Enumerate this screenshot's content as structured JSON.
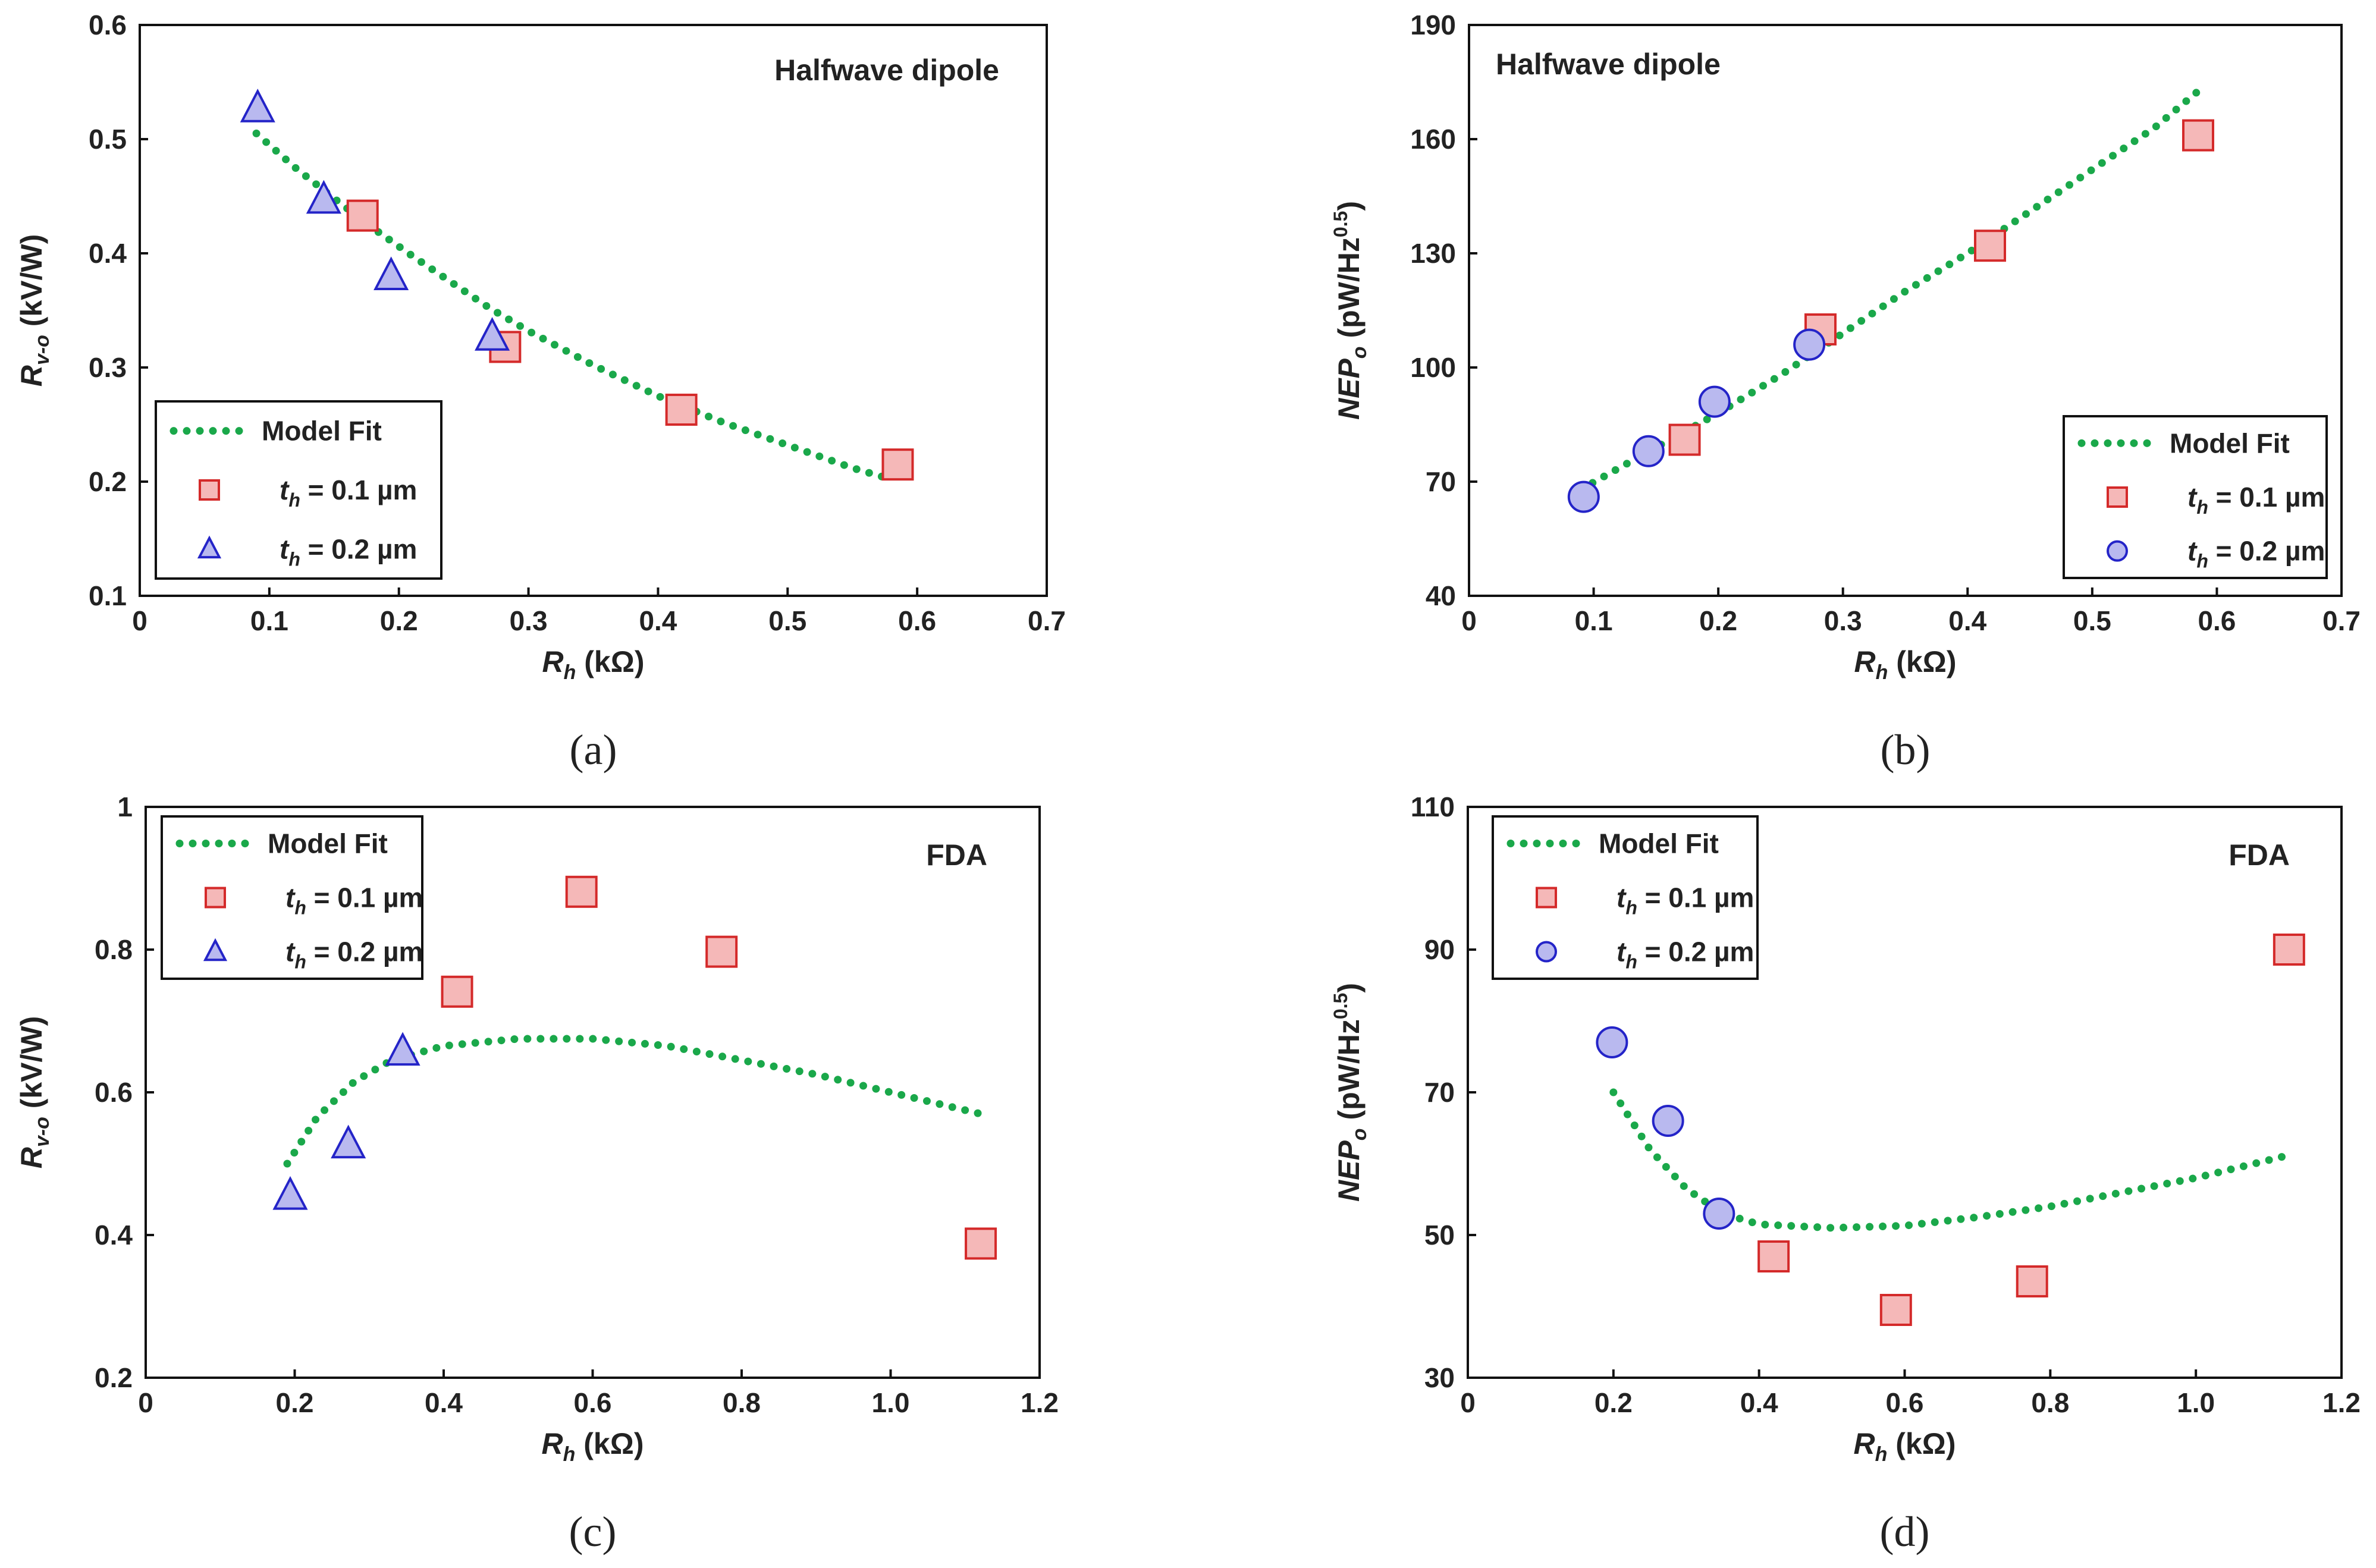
{
  "chart_data": [
    {
      "type": "scatter",
      "panel": "(a)",
      "title": "Halfwave dipole",
      "xlabel": {
        "main": "R",
        "sub": "h",
        "unit": " (kΩ)"
      },
      "ylabel": {
        "main": "R",
        "sub": "v-o",
        "unit": " (kV/W)"
      },
      "xlim": [
        0,
        0.7
      ],
      "ylim": [
        0.1,
        0.6
      ],
      "xticks": [
        0,
        0.1,
        0.2,
        0.3,
        0.4,
        0.5,
        0.6,
        0.7
      ],
      "yticks": [
        0.1,
        0.2,
        0.3,
        0.4,
        0.5,
        0.6
      ],
      "xtick_labels": [
        "0",
        "0.1",
        "0.2",
        "0.3",
        "0.4",
        "0.5",
        "0.6",
        "0.7"
      ],
      "ytick_labels": [
        "0.1",
        "0.2",
        "0.3",
        "0.4",
        "0.5",
        "0.6"
      ],
      "legend_position": "bottom-left",
      "series": [
        {
          "name": "Model Fit",
          "kind": "fit",
          "color": "#1aa84a",
          "x": [
            0.09,
            0.12,
            0.15,
            0.18,
            0.21,
            0.24,
            0.27,
            0.3,
            0.35,
            0.4,
            0.45,
            0.5,
            0.55,
            0.58
          ],
          "y": [
            0.505,
            0.475,
            0.448,
            0.422,
            0.398,
            0.375,
            0.352,
            0.332,
            0.302,
            0.275,
            0.252,
            0.232,
            0.212,
            0.202
          ]
        },
        {
          "name": "0.1 µm",
          "label_prefix": "t",
          "label_sub": "h",
          "label_eq": " = ",
          "kind": "square",
          "fill": "#f5b8b8",
          "stroke": "#d42a2a",
          "x": [
            0.172,
            0.282,
            0.418,
            0.585
          ],
          "y": [
            0.433,
            0.318,
            0.263,
            0.215
          ]
        },
        {
          "name": "0.2 µm",
          "label_prefix": "t",
          "label_sub": "h",
          "label_eq": " = ",
          "kind": "triangle",
          "fill": "#b9b9ef",
          "stroke": "#2424c8",
          "x": [
            0.091,
            0.142,
            0.194,
            0.272
          ],
          "y": [
            0.527,
            0.447,
            0.38,
            0.327
          ]
        }
      ]
    },
    {
      "type": "scatter",
      "panel": "(b)",
      "title": "Halfwave dipole",
      "xlabel": {
        "main": "R",
        "sub": "h",
        "unit": " (kΩ)"
      },
      "ylabel": {
        "main": "NEP",
        "sub": "o",
        "unit": " (pW/Hz",
        "sup": "0.5",
        "close": ")"
      },
      "xlim": [
        0,
        0.7
      ],
      "ylim": [
        40,
        190
      ],
      "xticks": [
        0,
        0.1,
        0.2,
        0.3,
        0.4,
        0.5,
        0.6,
        0.7
      ],
      "yticks": [
        40,
        70,
        100,
        130,
        160,
        190
      ],
      "xtick_labels": [
        "0",
        "0.1",
        "0.2",
        "0.3",
        "0.4",
        "0.5",
        "0.6",
        "0.7"
      ],
      "ytick_labels": [
        "40",
        "70",
        "100",
        "130",
        "160",
        "190"
      ],
      "legend_position": "bottom-right",
      "series": [
        {
          "name": "Model Fit",
          "kind": "fit",
          "color": "#1aa84a",
          "x": [
            0.09,
            0.15,
            0.2,
            0.25,
            0.3,
            0.35,
            0.4,
            0.45,
            0.5,
            0.55,
            0.59
          ],
          "y": [
            68,
            79,
            88,
            98,
            109,
            120,
            130,
            141,
            152,
            163,
            174
          ]
        },
        {
          "name": "0.1 µm",
          "label_prefix": "t",
          "label_sub": "h",
          "label_eq": " = ",
          "kind": "square",
          "fill": "#f5b8b8",
          "stroke": "#d42a2a",
          "x": [
            0.173,
            0.282,
            0.418,
            0.585
          ],
          "y": [
            81,
            110,
            132,
            161
          ]
        },
        {
          "name": "0.2 µm",
          "label_prefix": "t",
          "label_sub": "h",
          "label_eq": " = ",
          "kind": "circle",
          "fill": "#b9b9ef",
          "stroke": "#2424c8",
          "x": [
            0.092,
            0.144,
            0.197,
            0.273
          ],
          "y": [
            66,
            78,
            91,
            106
          ]
        }
      ]
    },
    {
      "type": "scatter",
      "panel": "(c)",
      "title": "FDA",
      "xlabel": {
        "main": "R",
        "sub": "h",
        "unit": " (kΩ)"
      },
      "ylabel": {
        "main": "R",
        "sub": "v-o",
        "unit": " (kV/W)"
      },
      "xlim": [
        0,
        1.2
      ],
      "ylim": [
        0.2,
        1
      ],
      "xticks": [
        0,
        0.2,
        0.4,
        0.6,
        0.8,
        1.0,
        1.2
      ],
      "yticks": [
        0.2,
        0.4,
        0.6,
        0.8,
        1.0
      ],
      "xtick_labels": [
        "0",
        "0.2",
        "0.4",
        "0.6",
        "0.8",
        "1.0",
        "1.2"
      ],
      "ytick_labels": [
        "0.2",
        "0.4",
        "0.6",
        "0.8",
        "1"
      ],
      "legend_position": "top-left",
      "series": [
        {
          "name": "Model Fit",
          "kind": "fit",
          "color": "#1aa84a",
          "x": [
            0.19,
            0.23,
            0.28,
            0.33,
            0.4,
            0.5,
            0.6,
            0.7,
            0.8,
            0.9,
            1.0,
            1.12
          ],
          "y": [
            0.5,
            0.565,
            0.615,
            0.645,
            0.665,
            0.675,
            0.675,
            0.665,
            0.645,
            0.625,
            0.6,
            0.57
          ]
        },
        {
          "name": "0.1 µm",
          "label_prefix": "t",
          "label_sub": "h",
          "label_eq": " = ",
          "kind": "square",
          "fill": "#f5b8b8",
          "stroke": "#d42a2a",
          "x": [
            0.418,
            0.585,
            0.773,
            1.121
          ],
          "y": [
            0.741,
            0.881,
            0.797,
            0.388
          ]
        },
        {
          "name": "0.2 µm",
          "label_prefix": "t",
          "label_sub": "h",
          "label_eq": " = ",
          "kind": "triangle",
          "fill": "#b9b9ef",
          "stroke": "#2424c8",
          "x": [
            0.194,
            0.272,
            0.345
          ],
          "y": [
            0.455,
            0.527,
            0.657
          ]
        }
      ]
    },
    {
      "type": "scatter",
      "panel": "(d)",
      "title": "FDA",
      "xlabel": {
        "main": "R",
        "sub": "h",
        "unit": " (kΩ)"
      },
      "ylabel": {
        "main": "NEP",
        "sub": "o",
        "unit": " (pW/Hz",
        "sup": "0.5",
        "close": ")"
      },
      "xlim": [
        0,
        1.2
      ],
      "ylim": [
        30,
        110
      ],
      "xticks": [
        0,
        0.2,
        0.4,
        0.6,
        0.8,
        1.0,
        1.2
      ],
      "yticks": [
        30,
        50,
        70,
        90,
        110
      ],
      "xtick_labels": [
        "0",
        "0.2",
        "0.4",
        "0.6",
        "0.8",
        "1.0",
        "1.2"
      ],
      "ytick_labels": [
        "30",
        "50",
        "70",
        "90",
        "110"
      ],
      "legend_position": "top-left",
      "series": [
        {
          "name": "Model Fit",
          "kind": "fit",
          "color": "#1aa84a",
          "x": [
            0.2,
            0.25,
            0.3,
            0.35,
            0.4,
            0.5,
            0.6,
            0.7,
            0.8,
            0.9,
            1.0,
            1.12
          ],
          "y": [
            70,
            62,
            56.5,
            53,
            51.5,
            51,
            51.3,
            52.5,
            54,
            56,
            58,
            61
          ]
        },
        {
          "name": "0.1 µm",
          "label_prefix": "t",
          "label_sub": "h",
          "label_eq": " = ",
          "kind": "square",
          "fill": "#f5b8b8",
          "stroke": "#d42a2a",
          "x": [
            0.42,
            0.588,
            0.775,
            1.128
          ],
          "y": [
            47,
            39.5,
            43.5,
            90
          ]
        },
        {
          "name": "0.2 µm",
          "label_prefix": "t",
          "label_sub": "h",
          "label_eq": " = ",
          "kind": "circle",
          "fill": "#b9b9ef",
          "stroke": "#2424c8",
          "x": [
            0.198,
            0.275,
            0.345
          ],
          "y": [
            77,
            66,
            53
          ]
        }
      ]
    }
  ]
}
